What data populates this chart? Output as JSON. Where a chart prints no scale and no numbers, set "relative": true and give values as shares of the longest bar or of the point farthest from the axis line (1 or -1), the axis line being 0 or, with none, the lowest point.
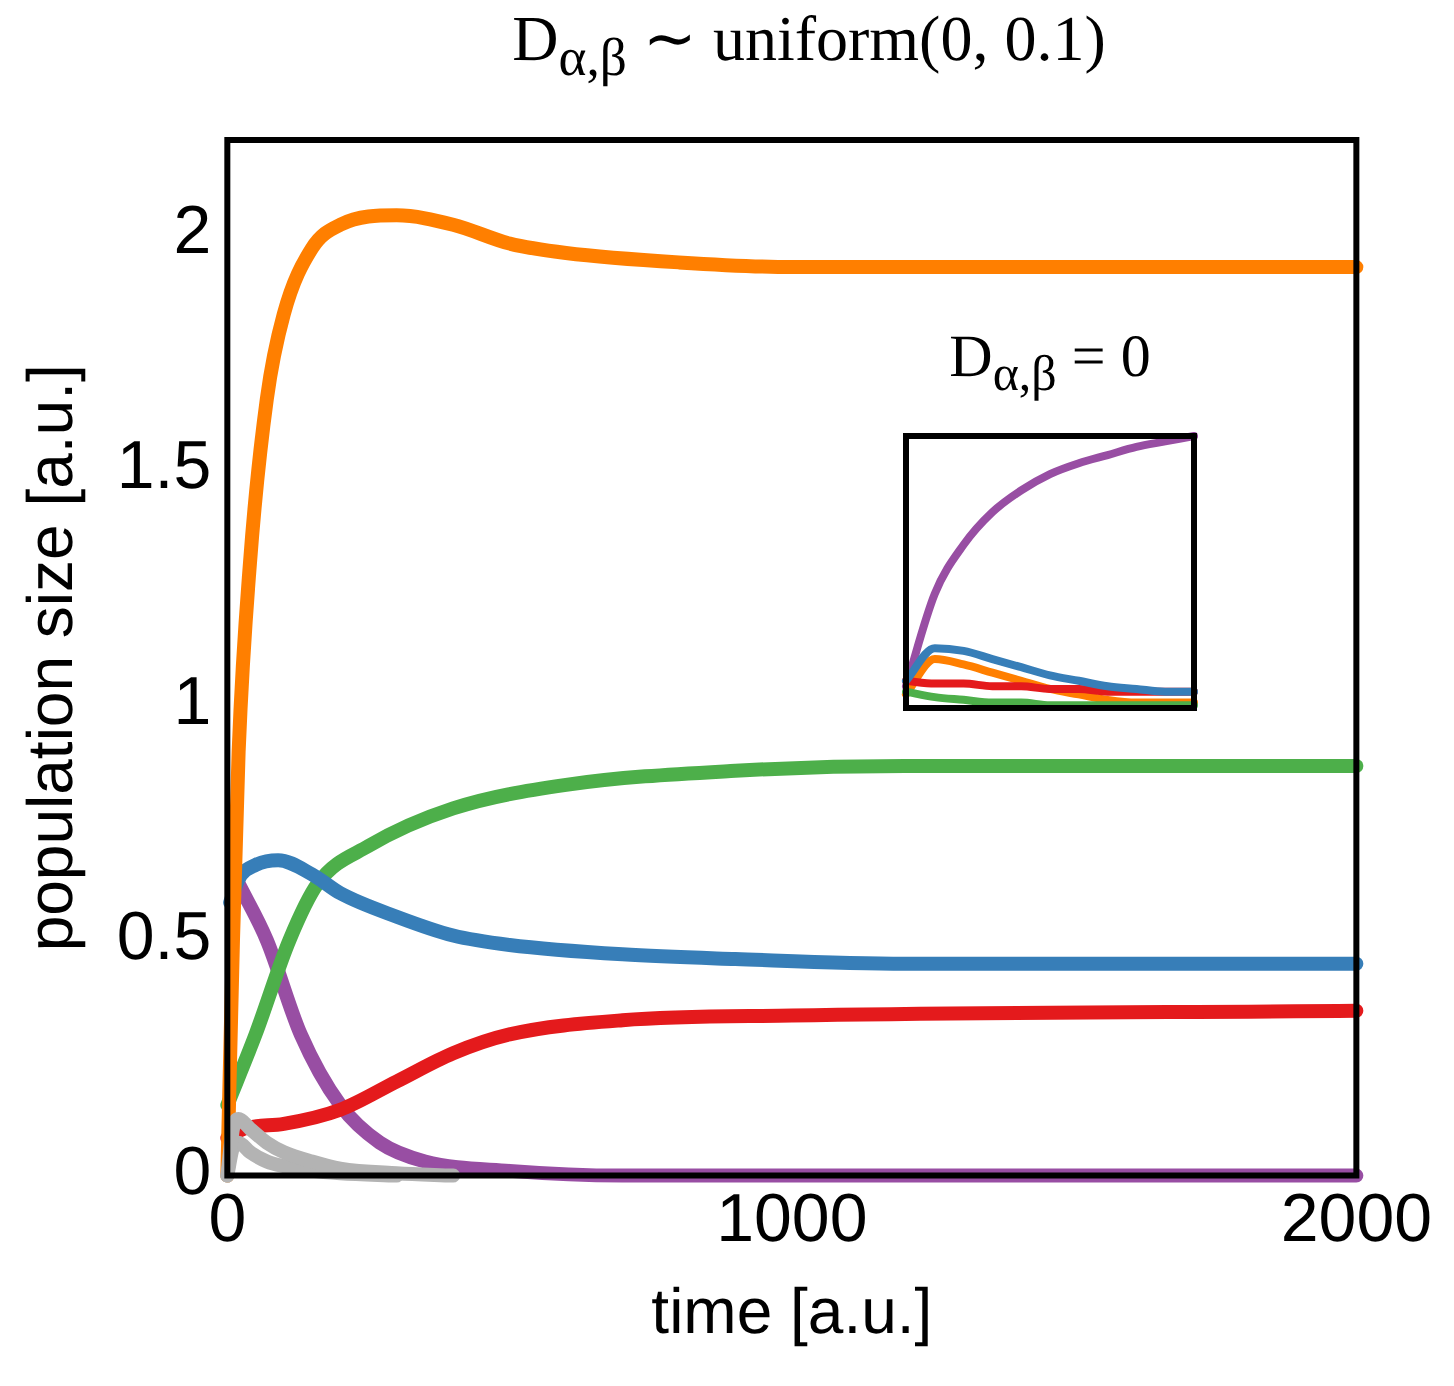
{
  "chart_data": [
    {
      "type": "line",
      "title": "D$_{α,β}$ ∼ uniform(0, 0.1)",
      "xlabel": "time [a.u.]",
      "ylabel": "population size [a.u.]",
      "xlim": [
        0,
        2000
      ],
      "ylim": [
        0,
        2.2
      ],
      "xticks": [
        0,
        1000,
        2000
      ],
      "yticks": [
        0,
        0.5,
        1,
        1.5,
        2
      ],
      "marker": "none",
      "series": [
        {
          "color": "#b3b3b3",
          "x": [
            0,
            10,
            20,
            40,
            70,
            100,
            150,
            200,
            300,
            400
          ],
          "values": [
            0,
            0.1,
            0.12,
            0.1,
            0.07,
            0.05,
            0.03,
            0.015,
            0.005,
            0
          ]
        },
        {
          "color": "#b3b3b3",
          "x": [
            0,
            10,
            20,
            40,
            70,
            100,
            150,
            200,
            300
          ],
          "values": [
            0,
            0.06,
            0.07,
            0.05,
            0.03,
            0.02,
            0.01,
            0.005,
            0
          ]
        },
        {
          "color": "#ff7f00",
          "x": [
            0,
            10,
            20,
            40,
            70,
            100,
            150,
            200,
            300,
            400,
            500,
            600,
            800,
            1000,
            1500,
            2000
          ],
          "values": [
            0,
            0.5,
            0.9,
            1.3,
            1.65,
            1.83,
            1.97,
            2.02,
            2.04,
            2.02,
            1.98,
            1.96,
            1.94,
            1.93,
            1.93,
            1.93
          ]
        },
        {
          "color": "#377eb8",
          "x": [
            5,
            20,
            50,
            90,
            150,
            200,
            300,
            400,
            500,
            700,
            900,
            1200,
            2000
          ],
          "values": [
            0.58,
            0.63,
            0.66,
            0.67,
            0.64,
            0.6,
            0.55,
            0.51,
            0.49,
            0.47,
            0.46,
            0.45,
            0.45
          ]
        },
        {
          "color": "#4daf4a",
          "x": [
            0,
            50,
            110,
            160,
            250,
            400,
            600,
            900,
            1200,
            2000
          ],
          "values": [
            0.15,
            0.3,
            0.5,
            0.62,
            0.7,
            0.78,
            0.83,
            0.86,
            0.87,
            0.87
          ]
        },
        {
          "color": "#e41a1c",
          "x": [
            0,
            30,
            100,
            200,
            300,
            400,
            500,
            700,
            1000,
            2000
          ],
          "values": [
            0.08,
            0.1,
            0.11,
            0.14,
            0.2,
            0.26,
            0.3,
            0.33,
            0.34,
            0.35
          ]
        },
        {
          "color": "#984ea3",
          "x": [
            20,
            70,
            130,
            200,
            270,
            350,
            500,
            700,
            1000,
            2000
          ],
          "values": [
            0.62,
            0.5,
            0.3,
            0.15,
            0.07,
            0.03,
            0.01,
            0,
            0,
            0
          ]
        }
      ]
    },
    {
      "type": "line",
      "title": "D$_{α,β}$ = 0",
      "relative": true,
      "marker": "none",
      "categories": [
        null,
        null,
        null,
        null,
        null,
        null,
        null,
        null,
        null,
        null,
        null
      ],
      "series": [
        {
          "color": "#377eb8",
          "values": [
            0.1,
            0.22,
            0.21,
            0.18,
            0.15,
            0.12,
            0.1,
            0.08,
            0.07,
            0.06,
            0.06
          ]
        },
        {
          "color": "#e41a1c",
          "values": [
            0.1,
            0.09,
            0.09,
            0.08,
            0.08,
            0.07,
            0.07,
            0.06,
            0.06,
            0.06,
            0.06
          ]
        },
        {
          "color": "#4daf4a",
          "values": [
            0.06,
            0.04,
            0.03,
            0.02,
            0.02,
            0.01,
            0.01,
            0.01,
            0.01,
            0.01,
            0.01
          ]
        },
        {
          "color": "#ff7f00",
          "values": [
            0.05,
            0.18,
            0.16,
            0.13,
            0.1,
            0.07,
            0.05,
            0.03,
            0.02,
            0.02,
            0.02
          ]
        },
        {
          "color": "#984ea3",
          "values": [
            0.08,
            0.42,
            0.6,
            0.72,
            0.8,
            0.86,
            0.9,
            0.93,
            0.96,
            0.98,
            1
          ]
        }
      ]
    }
  ]
}
